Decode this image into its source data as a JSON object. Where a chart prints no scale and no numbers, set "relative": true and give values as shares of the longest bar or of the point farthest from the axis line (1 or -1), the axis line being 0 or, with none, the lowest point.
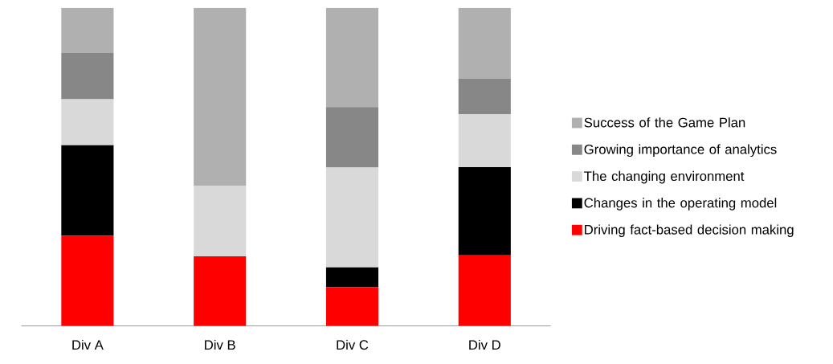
{
  "chart_data": {
    "type": "bar",
    "stacked": true,
    "relative": true,
    "legend": "right",
    "categories": [
      "Div A",
      "Div B",
      "Div C",
      "Div D"
    ],
    "series": [
      {
        "name": "Driving fact-based decision making",
        "color": "#ff0000",
        "values": [
          0.284,
          0.219,
          0.122,
          0.222
        ]
      },
      {
        "name": "Changes in the operating model",
        "color": "#000000",
        "values": [
          0.284,
          0,
          0.062,
          0.277
        ]
      },
      {
        "name": "The changing environment",
        "color": "#d9d9d9",
        "values": [
          0.145,
          0.222,
          0.314,
          0.167
        ]
      },
      {
        "name": "Growing importance of analytics",
        "color": "#878787",
        "values": [
          0.145,
          0,
          0.19,
          0.112
        ]
      },
      {
        "name": "Success of the Game Plan",
        "color": "#b0b0b0",
        "values": [
          0.142,
          0.559,
          0.312,
          0.222
        ]
      }
    ]
  }
}
